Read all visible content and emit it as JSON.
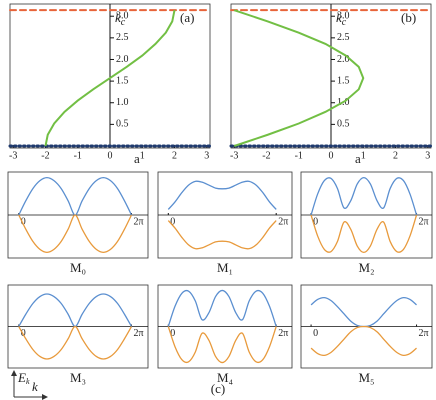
{
  "chart_data": [
    {
      "type": "line",
      "panel_label": "(a)",
      "x_label": "a",
      "y_label": {
        "base": "k",
        "sub": "c"
      },
      "x": [
        -2,
        -1.93,
        -1.73,
        -1.41,
        -1,
        -0.52,
        0,
        0.52,
        1,
        1.41,
        1.73,
        1.93,
        2
      ],
      "series": [
        {
          "color": "#72bf44",
          "values": [
            0,
            0.26,
            0.52,
            0.79,
            1.05,
            1.31,
            1.57,
            1.83,
            2.09,
            2.36,
            2.62,
            2.88,
            3.14
          ]
        }
      ],
      "reference_lines": [
        {
          "y": 3.14,
          "color": "#e8643a",
          "style": "dashed"
        },
        {
          "y": 0,
          "color": "#1f3a6e",
          "style": "dotted"
        }
      ],
      "xlim": [
        -3.1,
        3.1
      ],
      "ylim": [
        0,
        3.19
      ],
      "xticks": [
        -3,
        -2,
        -1,
        0,
        1,
        2,
        3
      ],
      "yticks": [
        {
          "value": 0.5,
          "label": "0.5"
        },
        {
          "value": 1,
          "label": "1.0"
        },
        {
          "value": 1.5,
          "label": "1.5"
        },
        {
          "value": 2,
          "label": "2.0"
        },
        {
          "value": 2.5,
          "label": "2.5"
        },
        {
          "value": 3,
          "label": "3.0"
        }
      ]
    },
    {
      "type": "line",
      "panel_label": "(b)",
      "x_label": "a",
      "y_label": {
        "base": "k",
        "sub": "c"
      },
      "x": [
        -3,
        -1.96,
        -1,
        -0.17,
        0.46,
        0.86,
        1,
        0.86,
        0.46,
        -0.17,
        -1,
        -1.96,
        -3
      ],
      "series": [
        {
          "color": "#72bf44",
          "values": [
            0,
            0.26,
            0.52,
            0.79,
            1.05,
            1.31,
            1.57,
            1.83,
            2.09,
            2.36,
            2.62,
            2.88,
            3.14
          ]
        }
      ],
      "reference_lines": [
        {
          "y": 3.14,
          "color": "#e8643a",
          "style": "dashed"
        },
        {
          "y": 0,
          "color": "#1f3a6e",
          "style": "dotted"
        }
      ],
      "xlim": [
        -3.1,
        3.1
      ],
      "ylim": [
        0,
        3.19
      ],
      "xticks": [
        -3,
        -2,
        -1,
        0,
        1,
        2,
        3
      ],
      "yticks": [
        {
          "value": 0.5,
          "label": "0.5"
        },
        {
          "value": 1,
          "label": "1.0"
        },
        {
          "value": 1.5,
          "label": "1.5"
        },
        {
          "value": 2,
          "label": "2.0"
        },
        {
          "value": 2.5,
          "label": "2.5"
        },
        {
          "value": 3,
          "label": "3.0"
        }
      ]
    },
    {
      "type": "band",
      "title": "M₀",
      "x": [
        0,
        0.39,
        0.79,
        1.18,
        1.57,
        1.96,
        2.36,
        2.75,
        3.14,
        3.53,
        3.93,
        4.32,
        4.71,
        5.11,
        5.5,
        5.89,
        6.28
      ],
      "series": [
        {
          "color": "#5b8fd0",
          "values": [
            0,
            0.38,
            0.71,
            0.92,
            1,
            0.92,
            0.71,
            0.38,
            0,
            0.38,
            0.71,
            0.92,
            1,
            0.92,
            0.71,
            0.38,
            0
          ]
        },
        {
          "color": "#e89a3c",
          "values": [
            0,
            -0.38,
            -0.71,
            -0.92,
            -1,
            -0.92,
            -0.71,
            -0.38,
            0,
            -0.38,
            -0.71,
            -0.92,
            -1,
            -0.92,
            -0.71,
            -0.38,
            0
          ]
        }
      ],
      "xlim": [
        -0.6,
        7.2
      ],
      "ylim": [
        -1.15,
        1.15
      ],
      "xticks": [
        0,
        {
          "value": 6.28,
          "label": "2π"
        }
      ]
    },
    {
      "type": "band",
      "title": "M₁",
      "x": [
        0,
        0.39,
        0.79,
        1.18,
        1.57,
        1.96,
        2.36,
        2.75,
        3.14,
        3.53,
        3.93,
        4.32,
        4.71,
        5.11,
        5.5,
        5.89,
        6.28
      ],
      "series": [
        {
          "color": "#5b8fd0",
          "values": [
            0.15,
            0.35,
            0.6,
            0.8,
            0.9,
            0.88,
            0.8,
            0.72,
            0.7,
            0.72,
            0.8,
            0.88,
            0.9,
            0.8,
            0.6,
            0.35,
            0.15
          ]
        },
        {
          "color": "#e89a3c",
          "values": [
            -0.15,
            -0.35,
            -0.6,
            -0.8,
            -0.9,
            -0.88,
            -0.8,
            -0.72,
            -0.7,
            -0.72,
            -0.8,
            -0.88,
            -0.9,
            -0.8,
            -0.6,
            -0.35,
            -0.15
          ]
        }
      ],
      "xlim": [
        -0.6,
        7.2
      ],
      "ylim": [
        -1.15,
        1.15
      ],
      "xticks": [
        0,
        {
          "value": 6.28,
          "label": "2π"
        }
      ]
    },
    {
      "type": "band",
      "title": "M₂",
      "x": [
        0,
        0.39,
        0.79,
        1.18,
        1.57,
        1.96,
        2.36,
        2.75,
        3.14,
        3.53,
        3.93,
        4.32,
        4.71,
        5.11,
        5.5,
        5.89,
        6.28
      ],
      "series": [
        {
          "color": "#5b8fd0",
          "values": [
            0,
            0.56,
            0.92,
            0.98,
            0.71,
            0.19,
            0.38,
            0.83,
            1,
            0.83,
            0.38,
            0.19,
            0.71,
            0.98,
            0.92,
            0.56,
            0
          ]
        },
        {
          "color": "#e89a3c",
          "values": [
            0,
            -0.56,
            -0.92,
            -0.98,
            -0.71,
            -0.19,
            -0.38,
            -0.83,
            -1,
            -0.83,
            -0.38,
            -0.19,
            -0.71,
            -0.98,
            -0.92,
            -0.56,
            0
          ]
        }
      ],
      "xlim": [
        -0.6,
        7.2
      ],
      "ylim": [
        -1.15,
        1.15
      ],
      "xticks": [
        0,
        {
          "value": 6.28,
          "label": "2π"
        }
      ]
    },
    {
      "type": "band",
      "title": "M₃",
      "x": [
        0,
        0.39,
        0.79,
        1.18,
        1.57,
        1.96,
        2.36,
        2.75,
        3.14,
        3.53,
        3.93,
        4.32,
        4.71,
        5.11,
        5.5,
        5.89,
        6.28
      ],
      "series": [
        {
          "color": "#5b8fd0",
          "values": [
            0,
            0.34,
            0.64,
            0.83,
            0.9,
            0.83,
            0.64,
            0.34,
            0,
            0.34,
            0.64,
            0.83,
            0.9,
            0.83,
            0.64,
            0.34,
            0
          ]
        },
        {
          "color": "#e89a3c",
          "values": [
            0,
            -0.34,
            -0.64,
            -0.83,
            -0.9,
            -0.83,
            -0.64,
            -0.34,
            0,
            -0.34,
            -0.64,
            -0.83,
            -0.9,
            -0.83,
            -0.64,
            -0.34,
            0
          ]
        }
      ],
      "xlim": [
        -0.6,
        7.2
      ],
      "ylim": [
        -1.15,
        1.15
      ],
      "xticks": [
        0,
        {
          "value": 6.28,
          "label": "2π"
        }
      ]
    },
    {
      "type": "band",
      "title": "M₄",
      "x": [
        0,
        0.39,
        0.79,
        1.18,
        1.57,
        1.96,
        2.36,
        2.75,
        3.14,
        3.53,
        3.93,
        4.32,
        4.71,
        5.11,
        5.5,
        5.89,
        6.28
      ],
      "series": [
        {
          "color": "#5b8fd0",
          "values": [
            0,
            0.56,
            0.92,
            0.98,
            0.71,
            0.19,
            0.38,
            0.83,
            1,
            0.83,
            0.38,
            0.19,
            0.71,
            0.98,
            0.92,
            0.56,
            0
          ]
        },
        {
          "color": "#e89a3c",
          "values": [
            0,
            -0.56,
            -0.92,
            -0.98,
            -0.71,
            -0.19,
            -0.38,
            -0.83,
            -1,
            -0.83,
            -0.38,
            -0.19,
            -0.71,
            -0.98,
            -0.92,
            -0.56,
            0
          ]
        }
      ],
      "xlim": [
        -0.6,
        7.2
      ],
      "ylim": [
        -1.15,
        1.15
      ],
      "xticks": [
        0,
        {
          "value": 6.28,
          "label": "2π"
        }
      ]
    },
    {
      "type": "band",
      "title": "M₅",
      "x": [
        0,
        0.39,
        0.79,
        1.18,
        1.57,
        1.96,
        2.36,
        2.75,
        3.14,
        3.53,
        3.93,
        4.32,
        4.71,
        5.11,
        5.5,
        5.89,
        6.28
      ],
      "series": [
        {
          "color": "#5b8fd0",
          "values": [
            0.6,
            0.75,
            0.8,
            0.72,
            0.55,
            0.35,
            0.15,
            0.03,
            0,
            0.03,
            0.15,
            0.35,
            0.55,
            0.72,
            0.8,
            0.75,
            0.6
          ]
        },
        {
          "color": "#e89a3c",
          "values": [
            -0.6,
            -0.75,
            -0.8,
            -0.72,
            -0.55,
            -0.35,
            -0.15,
            -0.03,
            0,
            -0.03,
            -0.15,
            -0.35,
            -0.55,
            -0.72,
            -0.8,
            -0.75,
            -0.6
          ]
        }
      ],
      "xlim": [
        -0.6,
        7.2
      ],
      "ylim": [
        -1.15,
        1.15
      ],
      "xticks": [
        0,
        {
          "value": 6.28,
          "label": "2π"
        }
      ]
    }
  ],
  "figure": {
    "label": "(c)",
    "axes_hint": {
      "y": {
        "base": "E",
        "sub": "k"
      },
      "x": "k"
    }
  }
}
